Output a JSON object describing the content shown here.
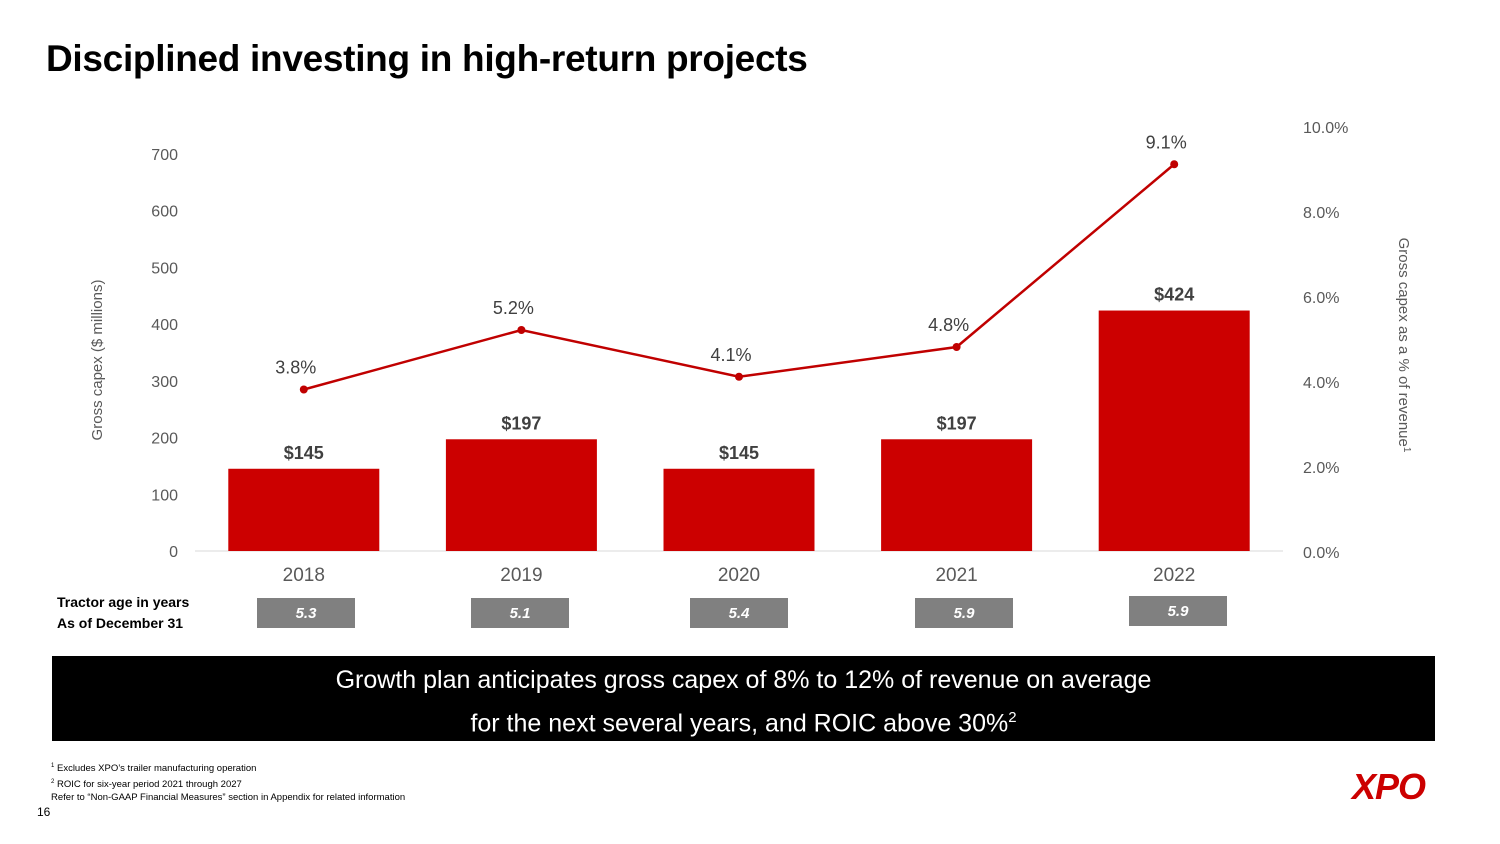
{
  "title": "Disciplined investing in high-return projects",
  "chart_data": {
    "type": "bar",
    "categories": [
      "2018",
      "2019",
      "2020",
      "2021",
      "2022"
    ],
    "series": [
      {
        "name": "Gross capex ($ millions)",
        "type": "bar",
        "axis": "left",
        "values": [
          145,
          197,
          145,
          197,
          424
        ],
        "labels": [
          "$145",
          "$197",
          "$145",
          "$197",
          "$424"
        ]
      },
      {
        "name": "Gross capex as a % of revenue",
        "type": "line",
        "axis": "right",
        "values": [
          3.8,
          5.2,
          4.1,
          4.8,
          9.1
        ],
        "labels": [
          "3.8%",
          "5.2%",
          "4.1%",
          "4.8%",
          "9.1%"
        ]
      }
    ],
    "ylabel": "Gross capex ($ millions)",
    "ylabel_right": "Gross capex as a % of revenue",
    "ylabel_right_sup": "1",
    "ylim": [
      0,
      700
    ],
    "yticks": [
      "0",
      "100",
      "200",
      "300",
      "400",
      "500",
      "600",
      "700"
    ],
    "ylim_right": [
      0,
      10
    ],
    "yticks_right": [
      "0.0%",
      "2.0%",
      "4.0%",
      "6.0%",
      "8.0%",
      "10.0%"
    ],
    "colors": {
      "bar": "#cc0000",
      "line": "#c00000"
    },
    "legend": "none",
    "grid": false
  },
  "tractor": {
    "label_line1": "Tractor age in years",
    "label_line2": "As of December 31",
    "ages": [
      "5.3",
      "5.1",
      "5.4",
      "5.9",
      "5.9"
    ]
  },
  "banner": {
    "line1": "Growth plan anticipates gross capex of 8% to 12% of revenue on average",
    "line2": "for the next several years, and ROIC above 30%",
    "line2_sup": "2"
  },
  "footnotes": {
    "fn1_mark": "1",
    "fn1": "Excludes XPO’s trailer manufacturing operation",
    "fn2_mark": "2",
    "fn2": "ROIC for six-year period 2021 through 2027",
    "fn3": "Refer to “Non-GAAP Financial Measures” section in Appendix for related information"
  },
  "page_number": "16",
  "logo_text": "XPO"
}
